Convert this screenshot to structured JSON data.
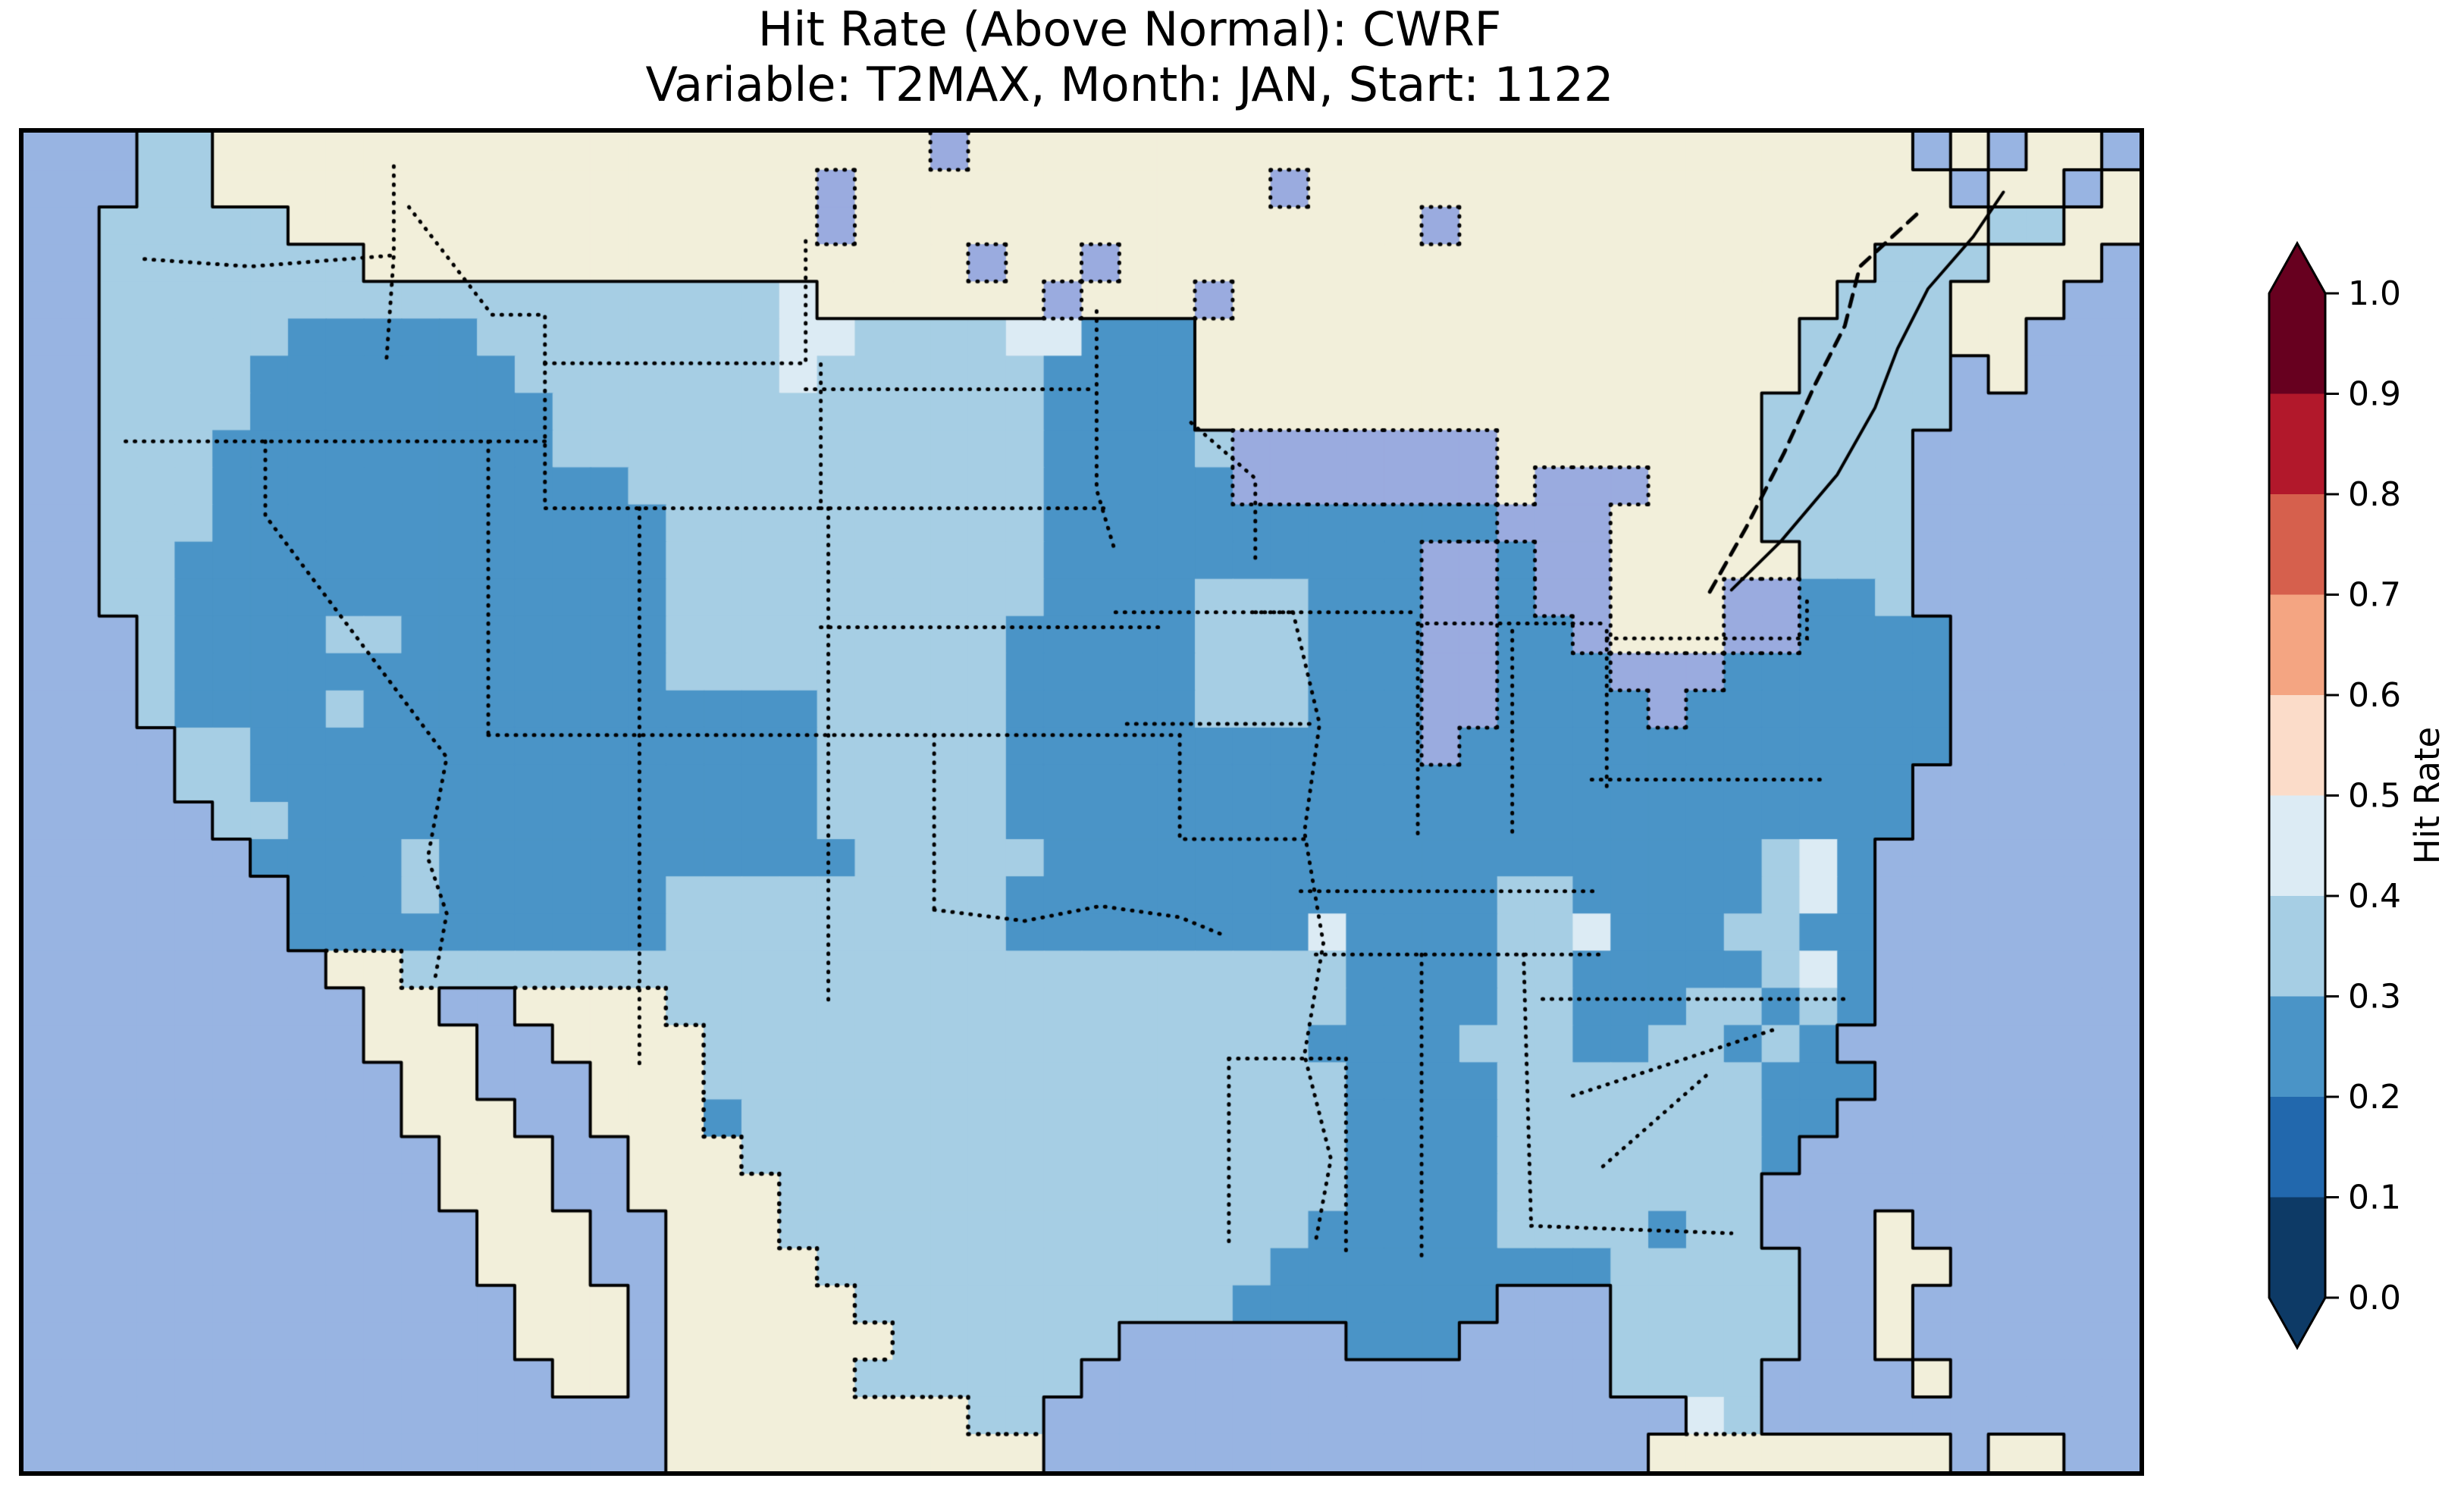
{
  "title": {
    "line1": "Hit Rate (Above Normal): CWRF",
    "line2": "Variable: T2MAX, Month: JAN, Start: 1122"
  },
  "colorbar": {
    "label": "Hit Rate",
    "tick_labels": [
      "1.0",
      "0.9",
      "0.8",
      "0.7",
      "0.6",
      "0.5",
      "0.4",
      "0.3",
      "0.2",
      "0.1",
      "0.0"
    ],
    "segments_top_to_bottom": [
      {
        "range": "0.9-1.0",
        "color": "#67001f"
      },
      {
        "range": "0.8-0.9",
        "color": "#b2182b"
      },
      {
        "range": "0.7-0.8",
        "color": "#d6604d"
      },
      {
        "range": "0.6-0.7",
        "color": "#f4a582"
      },
      {
        "range": "0.5-0.6",
        "color": "#fbdcc9"
      },
      {
        "range": "0.4-0.5",
        "color": "#dcebf4"
      },
      {
        "range": "0.3-0.4",
        "color": "#a6cee4"
      },
      {
        "range": "0.2-0.3",
        "color": "#4a94c7"
      },
      {
        "range": "0.1-0.2",
        "color": "#2268ad"
      },
      {
        "range": "0.0-0.1",
        "color": "#0d3a66"
      }
    ],
    "over_color": "#67001f",
    "under_color": "#0d3a66",
    "outline_color": "#000000"
  },
  "chart_data": {
    "type": "heatmap",
    "title": "Hit Rate (Above Normal): CWRF",
    "subtitle": "Variable: T2MAX, Month: JAN, Start: 1122",
    "colorbar_label": "Hit Rate",
    "value_range": [
      0.0,
      1.0
    ],
    "bin_width": 0.1,
    "region": "Continental United States (CWRF model domain)",
    "observed_value_bins_on_map": [
      "0.2-0.3",
      "0.3-0.4",
      "0.4-0.5"
    ],
    "cell_colors": {
      "w": "#98b4e2",
      "c": "#f2efda",
      "k": "#9aabdf",
      "2": "#4a94c7",
      "3": "#a6cee4",
      "4": "#dcebf4"
    },
    "cell_legend": {
      "w": "ocean",
      "c": "land outside USA (Canada / Mexico / islands)",
      "k": "lake",
      "2": "hit rate 0.2-0.3",
      "3": "hit rate 0.3-0.4",
      "4": "hit rate 0.4-0.5"
    },
    "grid_cols": 56,
    "grid_rows_count": 36,
    "grid_rows": [
      "www33ccccccccccccccccccckcccccccccccccccccccccccccwcwccw",
      "www33cccccccccccccccckccccccccccckcccccccccccccccccwccwc",
      "ww33333cccccccccccccckccccccccccccccckcccccccccccccc33ccwwc",
      "ww3333333cccccccccccccccckcckcccccccccccccccccccc333cccww",
      "ww3333333333333333334cccccckccckcccccccccccccccc333cccww",
      "ww333332222233333333443333442 22cccccccccccccccc3333ccwww",
      "ww3333222222233333334333333 2222cccccccccccccccc3333wcwww",
      "ww3333222222223333333333333 2222ccccccccccccccc33333wwwww",
      "ww33322222222233333333333332222 3kkkkkkkccccccc3333wwwwww",
      "ww33322222222222333333333332222 2kkkkkkkckkkccc3333wwwwww",
      "ww3332222222222223333333333222222222222kkkcccc3333wwwwww",
      "ww3322222222222223333333333222222222 2kk2kkccccc333wwwwww",
      "ww33222222222222233333333332222333222kk2kkccckk223wwwwww",
      "www3222233222222233333333322222333222kk22kccckk2222wwwww",
      "www3222222222222233333333322222333222kk222kkk222222wwwww",
      "www3222232222222222223333322222333222kk2222k2222222wwwww",
      "wwww33222222222222222333332222222222 2k2222222222222wwwww",
      "wwww3322222222222222233333222222222222222222222222wwwwww",
      "wwwww332222222222222233333222222222222222222222222wwwwww",
      "wwwwww2222322222222222333332222222222222222222342wwwwwww",
      "wwwwwww2223222222333333333222222222222233222223 42wwwwwww",
      "wwwwwww2222222222333333333222222224222233422233 22wwwwwww",
      "wwwwwwwwcc33333333333333333333333332222332222234 2wwwwwww",
      "wwwwwwwwwccwwcccc3333333333333333332222332223323 2wwwwwww",
      "wwwwwwwwwcccwwcccc333333333333333322223332233232wwwwwww",
      "wwwwwwwwwwccwwwccc3333333333333333322223333333222wwwwwww",
      "wwwwwwwwwwcccwwccc233333333333333332222333333322wwwwwwww",
      "wwwwwwwwwwwcccwwccc33333333333333332222333333 32wwwwwwwww",
      "wwwwwwwwwwwcccwwcccc333333333333333222233333 33wwwwwwwwww",
      "wwwwwwwwwwwwcccwwccc33333333333333222223333233wwwcwwwwww",
      "wwwwwwwwwwwwcccwwcccc33333333333322222222233333wwccwwwww",
      "wwwwwwwwwwwwwcccwccccc33333333332222222www33333wwcwwwwww",
      "wwwwwwwwwwwwwcccwcccccc333333wwwwww222wwww33333wwcwwwwww",
      "wwwwwwwwwwwwwwccwccccc333333wwwwwwwwwwwwww3333wwwwcwwwww",
      "wwwwwwwwwwwwwwwwwcccccccc33wwwwwwwwwwwwwwwww43wwwwwwwwww",
      "wwwwwwwwwwwwwwwwwccccccccccwwwwwwwwwwwwwwwwccccccccwccw"
    ],
    "state_borders_dotted": [
      [
        [
          3.2,
          3.4
        ],
        [
          6.0,
          3.6
        ],
        [
          9.8,
          3.3
        ]
      ],
      [
        [
          9.8,
          0.9
        ],
        [
          9.8,
          3.3
        ],
        [
          9.6,
          6.2
        ]
      ],
      [
        [
          10.2,
          2.0
        ],
        [
          12.4,
          4.9
        ],
        [
          13.8,
          4.9
        ],
        [
          13.8,
          6.2
        ]
      ],
      [
        [
          2.7,
          8.3
        ],
        [
          13.8,
          8.3
        ]
      ],
      [
        [
          6.4,
          8.3
        ],
        [
          6.4,
          10.3
        ],
        [
          11.2,
          16.8
        ],
        [
          10.7,
          19.5
        ],
        [
          11.2,
          21.0
        ],
        [
          10.9,
          22.7
        ]
      ],
      [
        [
          12.3,
          8.3
        ],
        [
          12.3,
          16.2
        ]
      ],
      [
        [
          13.8,
          6.2
        ],
        [
          20.7,
          6.2
        ],
        [
          20.7,
          2.7
        ]
      ],
      [
        [
          13.8,
          6.2
        ],
        [
          13.8,
          10.1
        ],
        [
          21.1,
          10.1
        ],
        [
          21.1,
          6.2
        ]
      ],
      [
        [
          20.7,
          6.9
        ],
        [
          28.4,
          6.9
        ]
      ],
      [
        [
          21.1,
          10.1
        ],
        [
          28.7,
          10.1
        ]
      ],
      [
        [
          21.1,
          13.3
        ],
        [
          30.2,
          13.3
        ]
      ],
      [
        [
          12.3,
          16.2
        ],
        [
          30.6,
          16.2
        ]
      ],
      [
        [
          16.3,
          10.1
        ],
        [
          16.3,
          16.2
        ]
      ],
      [
        [
          21.3,
          10.1
        ],
        [
          21.3,
          16.2
        ]
      ],
      [
        [
          16.3,
          16.2
        ],
        [
          16.3,
          25.2
        ]
      ],
      [
        [
          21.3,
          16.2
        ],
        [
          21.3,
          23.5
        ]
      ],
      [
        [
          24.1,
          16.2
        ],
        [
          24.1,
          20.9
        ]
      ],
      [
        [
          24.1,
          20.9
        ],
        [
          26.5,
          21.2
        ],
        [
          28.5,
          20.8
        ],
        [
          30.6,
          21.1
        ],
        [
          31.8,
          21.6
        ]
      ],
      [
        [
          28.4,
          4.8
        ],
        [
          28.4,
          9.6
        ],
        [
          28.9,
          11.3
        ]
      ],
      [
        [
          28.9,
          12.9
        ],
        [
          33.6,
          12.9
        ]
      ],
      [
        [
          29.2,
          15.9
        ],
        [
          34.2,
          15.9
        ]
      ],
      [
        [
          30.9,
          7.8
        ],
        [
          32.6,
          9.3
        ],
        [
          32.6,
          11.5
        ]
      ],
      [
        [
          33.6,
          12.9
        ],
        [
          34.3,
          15.9
        ],
        [
          33.9,
          18.8
        ],
        [
          34.4,
          21.8
        ],
        [
          33.9,
          24.8
        ],
        [
          34.6,
          27.6
        ],
        [
          34.2,
          29.8
        ]
      ],
      [
        [
          32.6,
          12.9
        ],
        [
          36.9,
          12.9
        ]
      ],
      [
        [
          36.9,
          13.2
        ],
        [
          36.9,
          18.9
        ]
      ],
      [
        [
          39.4,
          13.4
        ],
        [
          39.4,
          19.0
        ]
      ],
      [
        [
          36.9,
          13.2
        ],
        [
          41.9,
          13.2
        ]
      ],
      [
        [
          41.9,
          13.4
        ],
        [
          41.9,
          17.6
        ]
      ],
      [
        [
          41.9,
          13.6
        ],
        [
          47.2,
          13.6
        ],
        [
          47.2,
          12.5
        ]
      ],
      [
        [
          41.5,
          17.4
        ],
        [
          47.6,
          17.4
        ]
      ],
      [
        [
          33.8,
          20.4
        ],
        [
          41.6,
          20.4
        ]
      ],
      [
        [
          34.2,
          22.1
        ],
        [
          41.8,
          22.1
        ]
      ],
      [
        [
          37.0,
          22.1
        ],
        [
          37.0,
          30.4
        ]
      ],
      [
        [
          39.7,
          22.1
        ],
        [
          39.9,
          29.4
        ]
      ],
      [
        [
          39.9,
          29.4
        ],
        [
          45.2,
          29.6
        ]
      ],
      [
        [
          35.0,
          24.9
        ],
        [
          35.0,
          30.2
        ]
      ],
      [
        [
          31.9,
          24.9
        ],
        [
          35.0,
          24.9
        ]
      ],
      [
        [
          31.9,
          24.9
        ],
        [
          31.9,
          29.9
        ]
      ],
      [
        [
          30.6,
          16.2
        ],
        [
          30.6,
          19.0
        ],
        [
          34.0,
          19.0
        ]
      ],
      [
        [
          40.2,
          23.3
        ],
        [
          48.3,
          23.3
        ]
      ],
      [
        [
          41.0,
          25.9
        ],
        [
          46.4,
          24.1
        ]
      ],
      [
        [
          41.8,
          27.8
        ],
        [
          44.6,
          25.3
        ]
      ]
    ],
    "national_border_dashed": [
      [
        [
          50.1,
          2.2
        ],
        [
          48.6,
          3.6
        ],
        [
          48.2,
          5.2
        ],
        [
          47.4,
          6.8
        ],
        [
          46.6,
          8.6
        ],
        [
          45.6,
          10.6
        ],
        [
          44.6,
          12.4
        ]
      ]
    ],
    "rivers_solid": [
      [
        [
          45.2,
          12.3
        ],
        [
          46.5,
          11.0
        ],
        [
          48.0,
          9.2
        ],
        [
          49.0,
          7.4
        ],
        [
          49.6,
          5.8
        ],
        [
          50.4,
          4.2
        ],
        [
          51.6,
          2.8
        ],
        [
          52.4,
          1.6
        ]
      ]
    ]
  }
}
